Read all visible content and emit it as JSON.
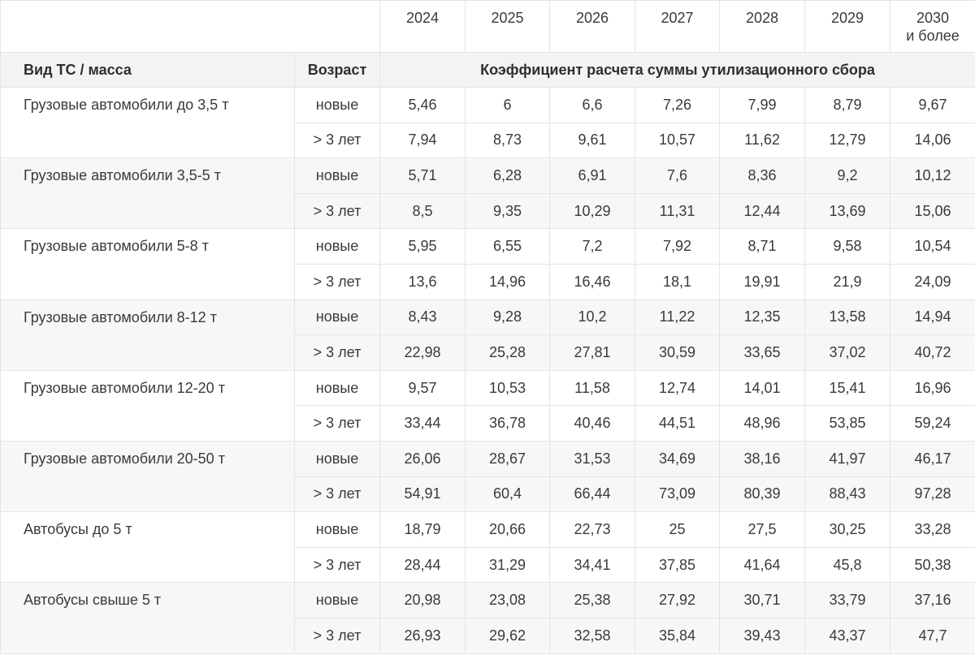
{
  "years": [
    "2024",
    "2025",
    "2026",
    "2027",
    "2028",
    "2029",
    "2030"
  ],
  "last_year_suffix": "и более",
  "headers": {
    "type": "Вид ТС / масса",
    "age": "Возраст",
    "coefficient": "Коэффициент расчета суммы утилизационного сбора"
  },
  "groups": [
    {
      "name": "Грузовые автомобили до 3,5 т",
      "rows": [
        {
          "age": "новые",
          "values": [
            "5,46",
            "6",
            "6,6",
            "7,26",
            "7,99",
            "8,79",
            "9,67"
          ]
        },
        {
          "age": "> 3 лет",
          "values": [
            "7,94",
            "8,73",
            "9,61",
            "10,57",
            "11,62",
            "12,79",
            "14,06"
          ]
        }
      ]
    },
    {
      "name": "Грузовые автомобили 3,5-5 т",
      "rows": [
        {
          "age": "новые",
          "values": [
            "5,71",
            "6,28",
            "6,91",
            "7,6",
            "8,36",
            "9,2",
            "10,12"
          ]
        },
        {
          "age": "> 3 лет",
          "values": [
            "8,5",
            "9,35",
            "10,29",
            "11,31",
            "12,44",
            "13,69",
            "15,06"
          ]
        }
      ]
    },
    {
      "name": "Грузовые автомобили 5-8 т",
      "rows": [
        {
          "age": "новые",
          "values": [
            "5,95",
            "6,55",
            "7,2",
            "7,92",
            "8,71",
            "9,58",
            "10,54"
          ]
        },
        {
          "age": "> 3 лет",
          "values": [
            "13,6",
            "14,96",
            "16,46",
            "18,1",
            "19,91",
            "21,9",
            "24,09"
          ]
        }
      ]
    },
    {
      "name": "Грузовые автомобили 8-12 т",
      "rows": [
        {
          "age": "новые",
          "values": [
            "8,43",
            "9,28",
            "10,2",
            "11,22",
            "12,35",
            "13,58",
            "14,94"
          ]
        },
        {
          "age": "> 3 лет",
          "values": [
            "22,98",
            "25,28",
            "27,81",
            "30,59",
            "33,65",
            "37,02",
            "40,72"
          ]
        }
      ]
    },
    {
      "name": "Грузовые автомобили 12-20 т",
      "rows": [
        {
          "age": "новые",
          "values": [
            "9,57",
            "10,53",
            "11,58",
            "12,74",
            "14,01",
            "15,41",
            "16,96"
          ]
        },
        {
          "age": "> 3 лет",
          "values": [
            "33,44",
            "36,78",
            "40,46",
            "44,51",
            "48,96",
            "53,85",
            "59,24"
          ]
        }
      ]
    },
    {
      "name": "Грузовые автомобили 20-50 т",
      "rows": [
        {
          "age": "новые",
          "values": [
            "26,06",
            "28,67",
            "31,53",
            "34,69",
            "38,16",
            "41,97",
            "46,17"
          ]
        },
        {
          "age": "> 3 лет",
          "values": [
            "54,91",
            "60,4",
            "66,44",
            "73,09",
            "80,39",
            "88,43",
            "97,28"
          ]
        }
      ]
    },
    {
      "name": "Автобусы до 5 т",
      "rows": [
        {
          "age": "новые",
          "values": [
            "18,79",
            "20,66",
            "22,73",
            "25",
            "27,5",
            "30,25",
            "33,28"
          ]
        },
        {
          "age": "> 3 лет",
          "values": [
            "28,44",
            "31,29",
            "34,41",
            "37,85",
            "41,64",
            "45,8",
            "50,38"
          ]
        }
      ]
    },
    {
      "name": "Автобусы свыше 5 т",
      "rows": [
        {
          "age": "новые",
          "values": [
            "20,98",
            "23,08",
            "25,38",
            "27,92",
            "30,71",
            "33,79",
            "37,16"
          ]
        },
        {
          "age": "> 3 лет",
          "values": [
            "26,93",
            "29,62",
            "32,58",
            "35,84",
            "39,43",
            "43,37",
            "47,7"
          ]
        }
      ]
    }
  ],
  "colors": {
    "header_bg": "#f3f3f3",
    "shaded_bg": "#f7f7f7",
    "border": "#e4e4e4",
    "text": "#3a3a3a"
  }
}
